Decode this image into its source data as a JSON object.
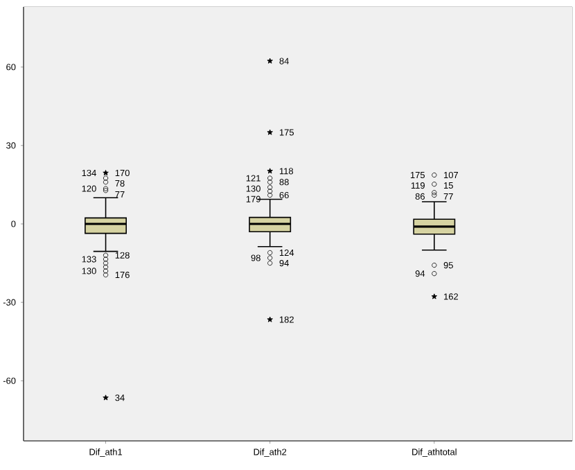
{
  "chart_data": {
    "type": "box",
    "categories": [
      "Dif_ath1",
      "Dif_ath2",
      "Dif_athtotal"
    ],
    "ylim": [
      -83,
      83
    ],
    "yticks": [
      -60,
      -30,
      0,
      30,
      60
    ],
    "grid": false,
    "series": [
      {
        "color": "#d6d3a2",
        "boxes": [
          {
            "low": -10.5,
            "q1": -3.6,
            "median": 0,
            "q3": 2.3,
            "high": 10
          },
          {
            "low": -8.7,
            "q1": -3,
            "median": 0,
            "q3": 2.5,
            "high": 9.4
          },
          {
            "low": -10,
            "q1": -3.9,
            "median": -1,
            "q3": 1.8,
            "high": 8.5
          }
        ]
      },
      {
        "type": "scatter",
        "marker": "circle",
        "color": "#000000",
        "x": [
          "Dif_ath1",
          "Dif_ath1",
          "Dif_ath1",
          "Dif_ath1",
          "Dif_ath1",
          "Dif_ath1",
          "Dif_ath1",
          "Dif_ath1",
          "Dif_ath1",
          "Dif_ath1",
          "Dif_ath2",
          "Dif_ath2",
          "Dif_ath2",
          "Dif_ath2",
          "Dif_ath2",
          "Dif_ath2",
          "Dif_ath2",
          "Dif_ath2",
          "Dif_athtotal",
          "Dif_athtotal",
          "Dif_athtotal",
          "Dif_athtotal",
          "Dif_athtotal",
          "Dif_athtotal"
        ],
        "values": [
          17.5,
          16,
          13.5,
          12.8,
          -12,
          -13.5,
          -15,
          -16.5,
          -18,
          -19.5,
          17.5,
          16,
          14,
          12.5,
          11,
          -11,
          -13,
          -15,
          18.7,
          15.2,
          12,
          11,
          -15.8,
          -19
        ]
      },
      {
        "type": "scatter",
        "marker": "star",
        "color": "#000000",
        "x": [
          "Dif_ath1",
          "Dif_ath1",
          "Dif_ath2",
          "Dif_ath2",
          "Dif_ath2",
          "Dif_ath2",
          "Dif_athtotal"
        ],
        "values": [
          19.5,
          -66.5,
          62.3,
          35,
          20.2,
          -36.6,
          -27.8
        ]
      }
    ],
    "annotations": [
      {
        "text": "170",
        "x": "Dif_ath1",
        "y": 19.5
      },
      {
        "text": "134",
        "x": "Dif_ath1",
        "y": 19.5
      },
      {
        "text": "78",
        "x": "Dif_ath1",
        "y": 16
      },
      {
        "text": "120",
        "x": "Dif_ath1",
        "y": 13.5
      },
      {
        "text": "77",
        "x": "Dif_ath1",
        "y": 12.8
      },
      {
        "text": "128",
        "x": "Dif_ath1",
        "y": -12
      },
      {
        "text": "133",
        "x": "Dif_ath1",
        "y": -13.5
      },
      {
        "text": "176",
        "x": "Dif_ath1",
        "y": -19.5
      },
      {
        "text": "130",
        "x": "Dif_ath1",
        "y": -18
      },
      {
        "text": "34",
        "x": "Dif_ath1",
        "y": -66.5
      },
      {
        "text": "84",
        "x": "Dif_ath2",
        "y": 62.3
      },
      {
        "text": "175",
        "x": "Dif_ath2",
        "y": 35
      },
      {
        "text": "118",
        "x": "Dif_ath2",
        "y": 20.2
      },
      {
        "text": "88",
        "x": "Dif_ath2",
        "y": 16
      },
      {
        "text": "121",
        "x": "Dif_ath2",
        "y": 17.5
      },
      {
        "text": "130",
        "x": "Dif_ath2",
        "y": 14
      },
      {
        "text": "66",
        "x": "Dif_ath2",
        "y": 11
      },
      {
        "text": "179",
        "x": "Dif_ath2",
        "y": 12.5
      },
      {
        "text": "124",
        "x": "Dif_ath2",
        "y": -11
      },
      {
        "text": "98",
        "x": "Dif_ath2",
        "y": -13
      },
      {
        "text": "94",
        "x": "Dif_ath2",
        "y": -15
      },
      {
        "text": "182",
        "x": "Dif_ath2",
        "y": -36.6
      },
      {
        "text": "107",
        "x": "Dif_athtotal",
        "y": 18.7
      },
      {
        "text": "175",
        "x": "Dif_athtotal",
        "y": 18.7
      },
      {
        "text": "15",
        "x": "Dif_athtotal",
        "y": 15.2
      },
      {
        "text": "119",
        "x": "Dif_athtotal",
        "y": 15.2
      },
      {
        "text": "77",
        "x": "Dif_athtotal",
        "y": 12
      },
      {
        "text": "86",
        "x": "Dif_athtotal",
        "y": 11
      },
      {
        "text": "95",
        "x": "Dif_athtotal",
        "y": -15.8
      },
      {
        "text": "94",
        "x": "Dif_athtotal",
        "y": -19
      },
      {
        "text": "162",
        "x": "Dif_athtotal",
        "y": -27.8
      }
    ]
  }
}
